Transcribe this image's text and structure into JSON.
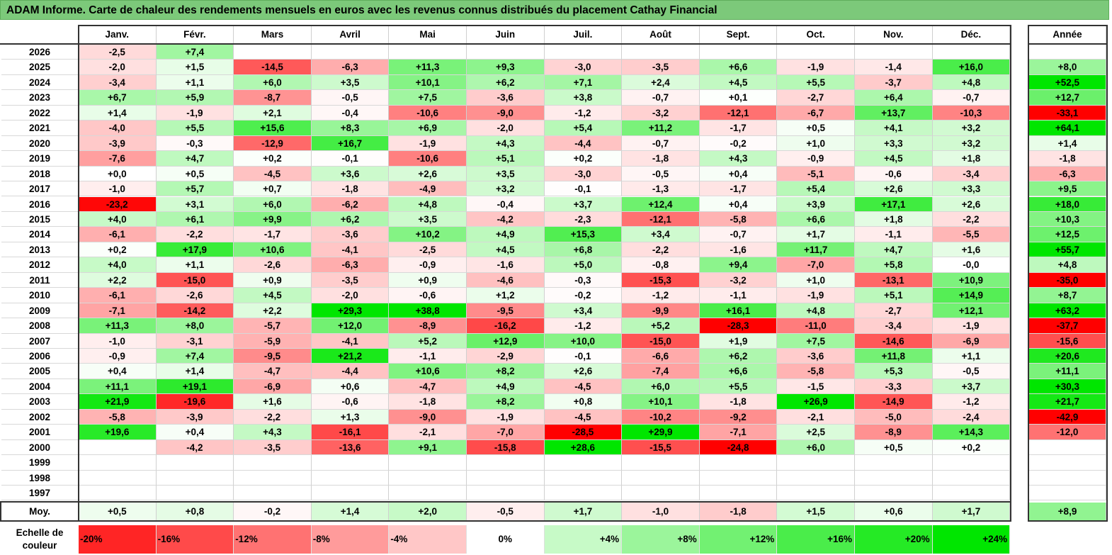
{
  "title": "ADAM Informe. Carte de chaleur des rendements mensuels en euros avec les revenus connus distribués du placement Cathay Financial",
  "months": [
    "Janv.",
    "Févr.",
    "Mars",
    "Avril",
    "Mai",
    "Juin",
    "Juil.",
    "Août",
    "Sept.",
    "Oct.",
    "Nov.",
    "Déc."
  ],
  "annual_header": "Année",
  "average_label": "Moy.",
  "scale_label": "Echelle de couleur",
  "colors": {
    "negative": "#ff0000",
    "neutral": "#ffffff",
    "positive": "#00e600",
    "title_bg": "#7cc97a"
  },
  "chart_data": {
    "type": "heatmap",
    "title": "ADAM Informe. Carte de chaleur des rendements mensuels en euros avec les revenus connus distribués du placement Cathay Financial",
    "units": "%",
    "color_range": [
      -24,
      24
    ],
    "rows": [
      {
        "year": "2026",
        "months": [
          "-2,5",
          "+7,4",
          "",
          "",
          "",
          "",
          "",
          "",
          "",
          "",
          "",
          ""
        ],
        "annual": ""
      },
      {
        "year": "2025",
        "months": [
          "-2,0",
          "+1,5",
          "-14,5",
          "-6,3",
          "+11,3",
          "+9,3",
          "-3,0",
          "-3,5",
          "+6,6",
          "-1,9",
          "-1,4",
          "+16,0"
        ],
        "annual": "+8,0"
      },
      {
        "year": "2024",
        "months": [
          "-3,4",
          "+1,1",
          "+6,0",
          "+3,5",
          "+10,1",
          "+6,2",
          "+7,1",
          "+2,4",
          "+4,5",
          "+5,5",
          "-3,7",
          "+4,8"
        ],
        "annual": "+52,5"
      },
      {
        "year": "2023",
        "months": [
          "+6,7",
          "+5,9",
          "-8,7",
          "-0,5",
          "+7,5",
          "-3,6",
          "+3,8",
          "-0,7",
          "+0,1",
          "-2,7",
          "+6,4",
          "-0,7"
        ],
        "annual": "+12,7"
      },
      {
        "year": "2022",
        "months": [
          "+1,4",
          "-1,9",
          "+2,1",
          "-0,4",
          "-10,6",
          "-9,0",
          "-1,2",
          "-3,2",
          "-12,1",
          "-6,7",
          "+13,7",
          "-10,3"
        ],
        "annual": "-33,1"
      },
      {
        "year": "2021",
        "months": [
          "-4,0",
          "+5,5",
          "+15,6",
          "+8,3",
          "+6,9",
          "-2,0",
          "+5,4",
          "+11,2",
          "-1,7",
          "+0,5",
          "+4,1",
          "+3,2"
        ],
        "annual": "+64,1"
      },
      {
        "year": "2020",
        "months": [
          "-3,9",
          "-0,3",
          "-12,9",
          "+16,7",
          "-1,9",
          "+4,3",
          "-4,4",
          "-0,7",
          "-0,2",
          "+1,0",
          "+3,3",
          "+3,2"
        ],
        "annual": "+1,4"
      },
      {
        "year": "2019",
        "months": [
          "-7,6",
          "+4,7",
          "+0,2",
          "-0,1",
          "-10,6",
          "+5,1",
          "+0,2",
          "-1,8",
          "+4,3",
          "-0,9",
          "+4,5",
          "+1,8"
        ],
        "annual": "-1,8"
      },
      {
        "year": "2018",
        "months": [
          "+0,0",
          "+0,5",
          "-4,5",
          "+3,6",
          "+2,6",
          "+3,5",
          "-3,0",
          "-0,5",
          "+0,4",
          "-5,1",
          "-0,6",
          "-3,4"
        ],
        "annual": "-6,3"
      },
      {
        "year": "2017",
        "months": [
          "-1,0",
          "+5,7",
          "+0,7",
          "-1,8",
          "-4,9",
          "+3,2",
          "-0,1",
          "-1,3",
          "-1,7",
          "+5,4",
          "+2,6",
          "+3,3"
        ],
        "annual": "+9,5"
      },
      {
        "year": "2016",
        "months": [
          "-23,2",
          "+3,1",
          "+6,0",
          "-6,2",
          "+4,8",
          "-0,4",
          "+3,7",
          "+12,4",
          "+0,4",
          "+3,9",
          "+17,1",
          "+2,6"
        ],
        "annual": "+18,0"
      },
      {
        "year": "2015",
        "months": [
          "+4,0",
          "+6,1",
          "+9,9",
          "+6,2",
          "+3,5",
          "-4,2",
          "-2,3",
          "-12,1",
          "-5,8",
          "+6,6",
          "+1,8",
          "-2,2"
        ],
        "annual": "+10,3"
      },
      {
        "year": "2014",
        "months": [
          "-6,1",
          "-2,2",
          "-1,7",
          "-3,6",
          "+10,2",
          "+4,9",
          "+15,3",
          "+3,4",
          "-0,7",
          "+1,7",
          "-1,1",
          "-5,5"
        ],
        "annual": "+12,5"
      },
      {
        "year": "2013",
        "months": [
          "+0,2",
          "+17,9",
          "+10,6",
          "-4,1",
          "-2,5",
          "+4,5",
          "+6,8",
          "-2,2",
          "-1,6",
          "+11,7",
          "+4,7",
          "+1,6"
        ],
        "annual": "+55,7"
      },
      {
        "year": "2012",
        "months": [
          "+4,0",
          "+1,1",
          "-2,6",
          "-6,3",
          "-0,9",
          "-1,6",
          "+5,0",
          "-0,8",
          "+9,4",
          "-7,0",
          "+5,8",
          "-0,0"
        ],
        "annual": "+4,8"
      },
      {
        "year": "2011",
        "months": [
          "+2,2",
          "-15,0",
          "+0,9",
          "-3,5",
          "+0,9",
          "-4,6",
          "-0,3",
          "-15,3",
          "-3,2",
          "+1,0",
          "-13,1",
          "+10,9"
        ],
        "annual": "-35,0"
      },
      {
        "year": "2010",
        "months": [
          "-6,1",
          "-2,6",
          "+4,5",
          "-2,0",
          "-0,6",
          "+1,2",
          "-0,2",
          "-1,2",
          "-1,1",
          "-1,9",
          "+5,1",
          "+14,9"
        ],
        "annual": "+8,7"
      },
      {
        "year": "2009",
        "months": [
          "-7,1",
          "-14,2",
          "+2,2",
          "+29,3",
          "+38,8",
          "-9,5",
          "+3,4",
          "-9,9",
          "+16,1",
          "+4,8",
          "-2,7",
          "+12,1"
        ],
        "annual": "+63,2"
      },
      {
        "year": "2008",
        "months": [
          "+11,3",
          "+8,0",
          "-5,7",
          "+12,0",
          "-8,9",
          "-16,2",
          "-1,2",
          "+5,2",
          "-28,3",
          "-11,0",
          "-3,4",
          "-1,9"
        ],
        "annual": "-37,7"
      },
      {
        "year": "2007",
        "months": [
          "-1,0",
          "-3,1",
          "-5,9",
          "-4,1",
          "+5,2",
          "+12,9",
          "+10,0",
          "-15,0",
          "+1,9",
          "+7,5",
          "-14,6",
          "-6,9"
        ],
        "annual": "-15,6"
      },
      {
        "year": "2006",
        "months": [
          "-0,9",
          "+7,4",
          "-9,5",
          "+21,2",
          "-1,1",
          "-2,9",
          "-0,1",
          "-6,6",
          "+6,2",
          "-3,6",
          "+11,8",
          "+1,1"
        ],
        "annual": "+20,6"
      },
      {
        "year": "2005",
        "months": [
          "+0,4",
          "+1,4",
          "-4,7",
          "-4,4",
          "+10,6",
          "+8,2",
          "+2,6",
          "-7,4",
          "+6,6",
          "-5,8",
          "+5,3",
          "-0,5"
        ],
        "annual": "+11,1"
      },
      {
        "year": "2004",
        "months": [
          "+11,1",
          "+19,1",
          "-6,9",
          "+0,6",
          "-4,7",
          "+4,9",
          "-4,5",
          "+6,0",
          "+5,5",
          "-1,5",
          "-3,3",
          "+3,7"
        ],
        "annual": "+30,3"
      },
      {
        "year": "2003",
        "months": [
          "+21,9",
          "-19,6",
          "+1,6",
          "-0,6",
          "-1,8",
          "+8,2",
          "+0,8",
          "+10,1",
          "-1,8",
          "+26,9",
          "-14,9",
          "-1,2"
        ],
        "annual": "+21,7"
      },
      {
        "year": "2002",
        "months": [
          "-5,8",
          "-3,9",
          "-2,2",
          "+1,3",
          "-9,0",
          "-1,9",
          "-4,5",
          "-10,2",
          "-9,2",
          "-2,1",
          "-5,0",
          "-2,4"
        ],
        "annual": "-42,9"
      },
      {
        "year": "2001",
        "months": [
          "+19,6",
          "+0,4",
          "+4,3",
          "-16,1",
          "-2,1",
          "-7,0",
          "-28,5",
          "+29,9",
          "-7,1",
          "+2,5",
          "-8,9",
          "+14,3"
        ],
        "annual": "-12,0"
      },
      {
        "year": "2000",
        "months": [
          "",
          "-4,2",
          "-3,5",
          "-13,6",
          "+9,1",
          "-15,8",
          "+28,6",
          "-15,5",
          "-24,8",
          "+6,0",
          "+0,5",
          "+0,2"
        ],
        "annual": ""
      },
      {
        "year": "1999",
        "months": [
          "",
          "",
          "",
          "",
          "",
          "",
          "",
          "",
          "",
          "",
          "",
          ""
        ],
        "annual": ""
      },
      {
        "year": "1998",
        "months": [
          "",
          "",
          "",
          "",
          "",
          "",
          "",
          "",
          "",
          "",
          "",
          ""
        ],
        "annual": ""
      },
      {
        "year": "1997",
        "months": [
          "",
          "",
          "",
          "",
          "",
          "",
          "",
          "",
          "",
          "",
          "",
          ""
        ],
        "annual": ""
      }
    ],
    "average": {
      "months": [
        "+0,5",
        "+0,8",
        "-0,2",
        "+1,4",
        "+2,0",
        "-0,5",
        "+1,7",
        "-1,0",
        "-1,8",
        "+1,5",
        "+0,6",
        "+1,7"
      ],
      "annual": "+8,9"
    },
    "scale": [
      {
        "label": "-20%",
        "value": -20
      },
      {
        "label": "-16%",
        "value": -16
      },
      {
        "label": "-12%",
        "value": -12
      },
      {
        "label": "-8%",
        "value": -8
      },
      {
        "label": "-4%",
        "value": -4
      },
      {
        "label": "0%",
        "value": 0
      },
      {
        "label": "+4%",
        "value": 4
      },
      {
        "label": "+8%",
        "value": 8
      },
      {
        "label": "+12%",
        "value": 12
      },
      {
        "label": "+16%",
        "value": 16
      },
      {
        "label": "+20%",
        "value": 20
      },
      {
        "label": "+24%",
        "value": 24
      }
    ]
  }
}
